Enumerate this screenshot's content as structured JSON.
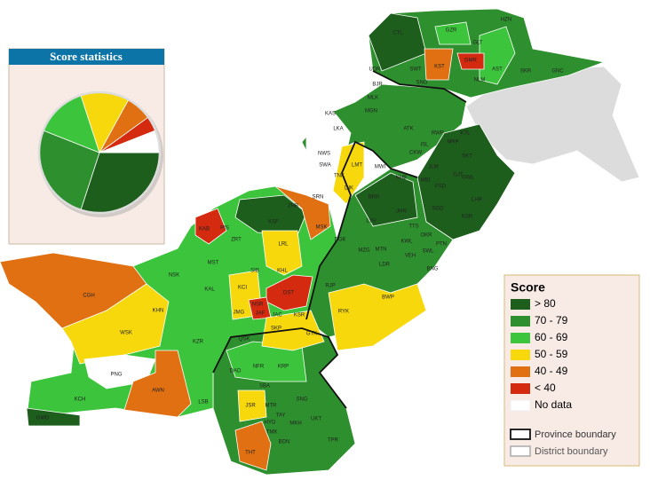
{
  "chart_data": {
    "type": "pie",
    "title": "Score statistics",
    "categories": [
      "> 80",
      "70 - 79",
      "60 - 69",
      "50 - 59",
      "40 - 49",
      "< 40",
      "No data"
    ],
    "values": [
      30,
      26,
      14,
      13,
      7,
      4,
      6
    ],
    "colors": [
      "#1d5e1d",
      "#2e8f2e",
      "#3cc43c",
      "#f7d80c",
      "#e07012",
      "#d42a10",
      "#ffffff"
    ]
  },
  "legend": {
    "title": "Score",
    "boundaries": [
      "Province boundary",
      "District boundary"
    ]
  },
  "map": {
    "labels": [
      "CTL",
      "GZR",
      "HZN",
      "GLT",
      "DMR",
      "KST",
      "AST",
      "SKR",
      "GNC",
      "UDR",
      "SWT",
      "SNG",
      "NLM",
      "BJR",
      "MLK",
      "MGN",
      "KAS",
      "LKA",
      "NWS",
      "SWA",
      "TNK",
      "LMT",
      "DIK",
      "SRN",
      "ZHB",
      "MSK",
      "KSF",
      "PIS",
      "KAB",
      "ZRT",
      "LRL",
      "KHL",
      "SIB",
      "KCI",
      "MST",
      "NSK",
      "KAL",
      "DST",
      "JMG",
      "NSR",
      "JAF",
      "JAC",
      "KSR",
      "SKP",
      "GTK",
      "KHN",
      "CGH",
      "WSK",
      "KZR",
      "QSK",
      "DAD",
      "NFR",
      "KRP",
      "PNG",
      "SBA",
      "SNG",
      "KCH",
      "AWN",
      "LSB",
      "JSR",
      "MTR",
      "TAY",
      "HYD",
      "MKH",
      "UKT",
      "TMK",
      "BDN",
      "GWD",
      "THT",
      "TPR",
      "RJP",
      "RYK",
      "BWP",
      "DGK",
      "MZG",
      "MTN",
      "LDR",
      "VEH",
      "BNG",
      "LYH",
      "BKR",
      "MWI",
      "KHB",
      "JHN",
      "KWL",
      "ATK",
      "CKW",
      "MBI",
      "SGD",
      "FSD",
      "TTS",
      "OKR",
      "SWL",
      "PTN",
      "KSR",
      "LHR",
      "GWL",
      "SKT",
      "GJT",
      "RWP",
      "JLM",
      "ISL",
      "KTL",
      "MRP"
    ]
  }
}
